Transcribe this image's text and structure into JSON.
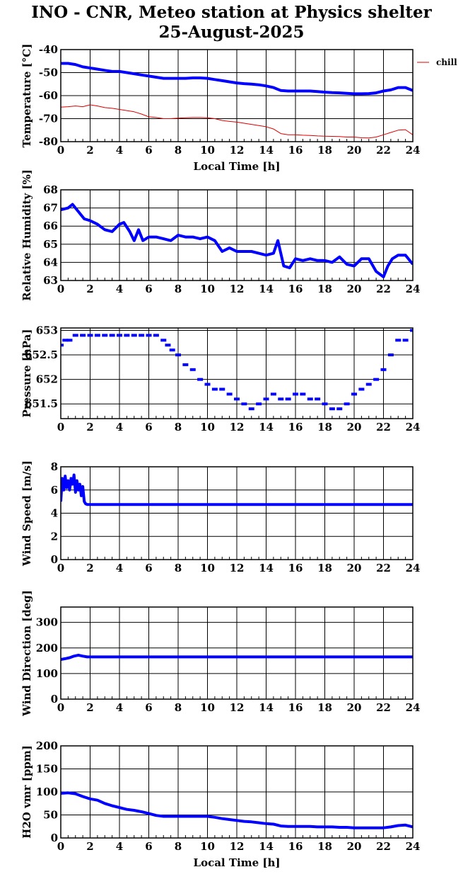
{
  "header": {
    "title_line1": "INO - CNR, Meteo station at Physics shelter",
    "title_line2": "25-August-2025"
  },
  "colors": {
    "primary_series": "#0000ff",
    "chill_series": "#dd0000",
    "grid": "#000000"
  },
  "chart_data": [
    {
      "id": "temperature",
      "type": "line",
      "ylabel": "Temperature [°C]",
      "xlabel": "Local Time [h]",
      "xlim": [
        0,
        24
      ],
      "ylim": [
        -80,
        -40
      ],
      "yticks": [
        -80,
        -70,
        -60,
        -50,
        -40
      ],
      "xticks": [
        0,
        2,
        4,
        6,
        8,
        10,
        12,
        14,
        16,
        18,
        20,
        22,
        24
      ],
      "legend": {
        "entries": [
          "chill"
        ],
        "placement": "outside-top-right"
      },
      "series": [
        {
          "name": "",
          "x": [
            0,
            0.5,
            1,
            1.5,
            2,
            2.5,
            3,
            3.5,
            4,
            4.5,
            5,
            5.5,
            6,
            6.5,
            7,
            7.5,
            8,
            8.5,
            9,
            9.5,
            10,
            10.5,
            11,
            11.5,
            12,
            12.5,
            13,
            13.5,
            14,
            14.5,
            15,
            15.5,
            16,
            16.5,
            17,
            17.5,
            18,
            18.5,
            19,
            19.5,
            20,
            20.5,
            21,
            21.5,
            22,
            22.5,
            23,
            23.5,
            24
          ],
          "y": [
            -46,
            -46,
            -46.5,
            -47.5,
            -48,
            -48.5,
            -49,
            -49.5,
            -49.5,
            -50,
            -50.5,
            -51,
            -51.5,
            -52,
            -52.5,
            -52.5,
            -52.5,
            -52.5,
            -52.3,
            -52.3,
            -52.5,
            -53,
            -53.5,
            -54,
            -54.5,
            -54.8,
            -55,
            -55.3,
            -55.8,
            -56.5,
            -57.8,
            -58,
            -58,
            -58,
            -58,
            -58.2,
            -58.5,
            -58.7,
            -58.8,
            -59,
            -59.2,
            -59.2,
            -59.1,
            -58.8,
            -58,
            -57.5,
            -56.5,
            -56.5,
            -57.8
          ]
        },
        {
          "name": "chill",
          "x": [
            0,
            0.5,
            1,
            1.5,
            2,
            2.5,
            3,
            3.5,
            4,
            4.5,
            5,
            5.5,
            6,
            6.5,
            7,
            7.5,
            8,
            8.5,
            9,
            9.5,
            10,
            10.5,
            11,
            11.5,
            12,
            12.5,
            13,
            13.5,
            14,
            14.5,
            15,
            15.5,
            16,
            16.5,
            17,
            17.5,
            18,
            18.5,
            19,
            19.5,
            20,
            20.5,
            21,
            21.5,
            22,
            22.5,
            23,
            23.5,
            24
          ],
          "y": [
            -65,
            -64.8,
            -64.5,
            -64.8,
            -64,
            -64.5,
            -65.2,
            -65.5,
            -66,
            -66.5,
            -67,
            -68,
            -69.2,
            -69.5,
            -70,
            -70,
            -69.8,
            -69.6,
            -69.5,
            -69.5,
            -69.6,
            -70,
            -70.8,
            -71.2,
            -71.5,
            -72,
            -72.5,
            -73,
            -73.5,
            -74.5,
            -76.5,
            -77,
            -77,
            -77.2,
            -77.3,
            -77.5,
            -77.6,
            -77.7,
            -77.8,
            -78,
            -78,
            -78.3,
            -78.4,
            -78,
            -77,
            -76,
            -75,
            -74.8,
            -77
          ]
        }
      ]
    },
    {
      "id": "humidity",
      "type": "line",
      "ylabel": "Relative Humidity [%]",
      "xlim": [
        0,
        24
      ],
      "ylim": [
        63,
        68
      ],
      "yticks": [
        63,
        64,
        65,
        66,
        67,
        68
      ],
      "xticks": [
        0,
        2,
        4,
        6,
        8,
        10,
        12,
        14,
        16,
        18,
        20,
        22,
        24
      ],
      "series": [
        {
          "name": "",
          "x": [
            0,
            0.5,
            0.8,
            1.2,
            1.6,
            2,
            2.5,
            3,
            3.5,
            4,
            4.3,
            4.7,
            5,
            5.3,
            5.6,
            6,
            6.5,
            7,
            7.5,
            8,
            8.5,
            9,
            9.5,
            10,
            10.5,
            11,
            11.5,
            12,
            12.5,
            13,
            13.5,
            14,
            14.5,
            14.8,
            15.2,
            15.6,
            16,
            16.5,
            17,
            17.5,
            18,
            18.5,
            19,
            19.5,
            20,
            20.5,
            21,
            21.5,
            22,
            22.3,
            22.6,
            23,
            23.5,
            24
          ],
          "y": [
            66.9,
            67,
            67.2,
            66.8,
            66.4,
            66.3,
            66.1,
            65.8,
            65.7,
            66.1,
            66.2,
            65.7,
            65.2,
            65.8,
            65.2,
            65.4,
            65.4,
            65.3,
            65.2,
            65.5,
            65.4,
            65.4,
            65.3,
            65.4,
            65.2,
            64.6,
            64.8,
            64.6,
            64.6,
            64.6,
            64.5,
            64.4,
            64.5,
            65.2,
            63.8,
            63.7,
            64.2,
            64.1,
            64.2,
            64.1,
            64.1,
            64.0,
            64.3,
            63.9,
            63.8,
            64.2,
            64.2,
            63.5,
            63.2,
            63.8,
            64.2,
            64.4,
            64.4,
            63.9
          ]
        }
      ]
    },
    {
      "id": "pressure",
      "type": "scatter",
      "ylabel": "Pressure [hPa]",
      "xlim": [
        0,
        24
      ],
      "ylim": [
        651.2,
        653.05
      ],
      "yticks": [
        651.5,
        652,
        652.5,
        653
      ],
      "ytick_labels": [
        "651.5",
        "652",
        "652.5",
        "653"
      ],
      "xticks": [
        0,
        2,
        4,
        6,
        8,
        10,
        12,
        14,
        16,
        18,
        20,
        22,
        24
      ],
      "series": [
        {
          "name": "",
          "x": [
            0,
            0.3,
            0.6,
            1,
            1.5,
            2,
            2.5,
            3,
            3.5,
            4,
            4.5,
            5,
            5.5,
            6,
            6.5,
            7,
            7.3,
            7.6,
            8,
            8.5,
            9,
            9.5,
            10,
            10.5,
            11,
            11.5,
            12,
            12.5,
            13,
            13.5,
            14,
            14.5,
            15,
            15.5,
            16,
            16.5,
            17,
            17.5,
            18,
            18.5,
            19,
            19.5,
            20,
            20.5,
            21,
            21.5,
            22,
            22.5,
            23,
            23.5,
            24
          ],
          "y": [
            652.7,
            652.8,
            652.8,
            652.9,
            652.9,
            652.9,
            652.9,
            652.9,
            652.9,
            652.9,
            652.9,
            652.9,
            652.9,
            652.9,
            652.9,
            652.8,
            652.7,
            652.6,
            652.5,
            652.3,
            652.2,
            652.0,
            651.9,
            651.8,
            651.8,
            651.7,
            651.6,
            651.5,
            651.4,
            651.5,
            651.6,
            651.7,
            651.6,
            651.6,
            651.7,
            651.7,
            651.6,
            651.6,
            651.5,
            651.4,
            651.4,
            651.5,
            651.7,
            651.8,
            651.9,
            652.0,
            652.2,
            652.5,
            652.8,
            652.8,
            653.0
          ]
        }
      ]
    },
    {
      "id": "wind_speed",
      "type": "line",
      "ylabel": "Wind Speed [m/s]",
      "xlim": [
        0,
        24
      ],
      "ylim": [
        0,
        8
      ],
      "yticks": [
        0,
        2,
        4,
        6,
        8
      ],
      "xticks": [
        0,
        2,
        4,
        6,
        8,
        10,
        12,
        14,
        16,
        18,
        20,
        22,
        24
      ],
      "series": [
        {
          "name": "",
          "x": [
            0,
            0.1,
            0.2,
            0.3,
            0.4,
            0.5,
            0.6,
            0.7,
            0.8,
            0.9,
            1.0,
            1.1,
            1.2,
            1.3,
            1.4,
            1.5,
            1.6,
            1.7,
            1.8,
            2,
            4,
            6,
            8,
            10,
            12,
            14,
            16,
            18,
            20,
            22,
            24
          ],
          "y": [
            5.0,
            7.0,
            6.0,
            7.2,
            6.2,
            6.8,
            6.0,
            7.0,
            6.5,
            7.3,
            5.8,
            6.8,
            6.0,
            6.5,
            5.5,
            6.3,
            5.0,
            4.8,
            4.75,
            4.75,
            4.75,
            4.75,
            4.75,
            4.75,
            4.75,
            4.75,
            4.75,
            4.75,
            4.75,
            4.75,
            4.75
          ]
        }
      ]
    },
    {
      "id": "wind_direction",
      "type": "line",
      "ylabel": "Wind Direction [deg]",
      "xlim": [
        0,
        24
      ],
      "ylim": [
        0,
        360
      ],
      "yticks": [
        0,
        100,
        200,
        300
      ],
      "xticks": [
        0,
        2,
        4,
        6,
        8,
        10,
        12,
        14,
        16,
        18,
        20,
        22,
        24
      ],
      "series": [
        {
          "name": "",
          "x": [
            0,
            0.3,
            0.6,
            0.9,
            1.2,
            1.5,
            1.8,
            2,
            4,
            6,
            8,
            10,
            12,
            14,
            16,
            18,
            20,
            22,
            24
          ],
          "y": [
            155,
            158,
            162,
            168,
            172,
            168,
            165,
            165,
            165,
            165,
            165,
            165,
            165,
            165,
            165,
            165,
            165,
            165,
            165
          ]
        }
      ]
    },
    {
      "id": "h2o_vmr",
      "type": "line",
      "ylabel": "H2O vmr [ppm]",
      "xlabel": "Local Time [h]",
      "xlim": [
        0,
        24
      ],
      "ylim": [
        0,
        200
      ],
      "yticks": [
        0,
        50,
        100,
        150,
        200
      ],
      "xticks": [
        0,
        2,
        4,
        6,
        8,
        10,
        12,
        14,
        16,
        18,
        20,
        22,
        24
      ],
      "series": [
        {
          "name": "",
          "x": [
            0,
            0.5,
            1,
            1.5,
            2,
            2.5,
            3,
            3.5,
            4,
            4.5,
            5,
            5.5,
            6,
            6.5,
            7,
            7.5,
            8,
            8.5,
            9,
            9.5,
            10,
            10.5,
            11,
            11.5,
            12,
            12.5,
            13,
            13.5,
            14,
            14.5,
            15,
            15.5,
            16,
            16.5,
            17,
            17.5,
            18,
            18.5,
            19,
            19.5,
            20,
            20.5,
            21,
            21.5,
            22,
            22.5,
            23,
            23.5,
            24
          ],
          "y": [
            97,
            98,
            96,
            90,
            85,
            82,
            75,
            70,
            66,
            62,
            60,
            57,
            53,
            49,
            47,
            47,
            47,
            47,
            47,
            47,
            47,
            45,
            42,
            40,
            38,
            36,
            35,
            33,
            31,
            30,
            26,
            25,
            25,
            25,
            25,
            24,
            24,
            24,
            23,
            23,
            22,
            22,
            22,
            22,
            22,
            24,
            27,
            28,
            24
          ]
        }
      ]
    }
  ]
}
